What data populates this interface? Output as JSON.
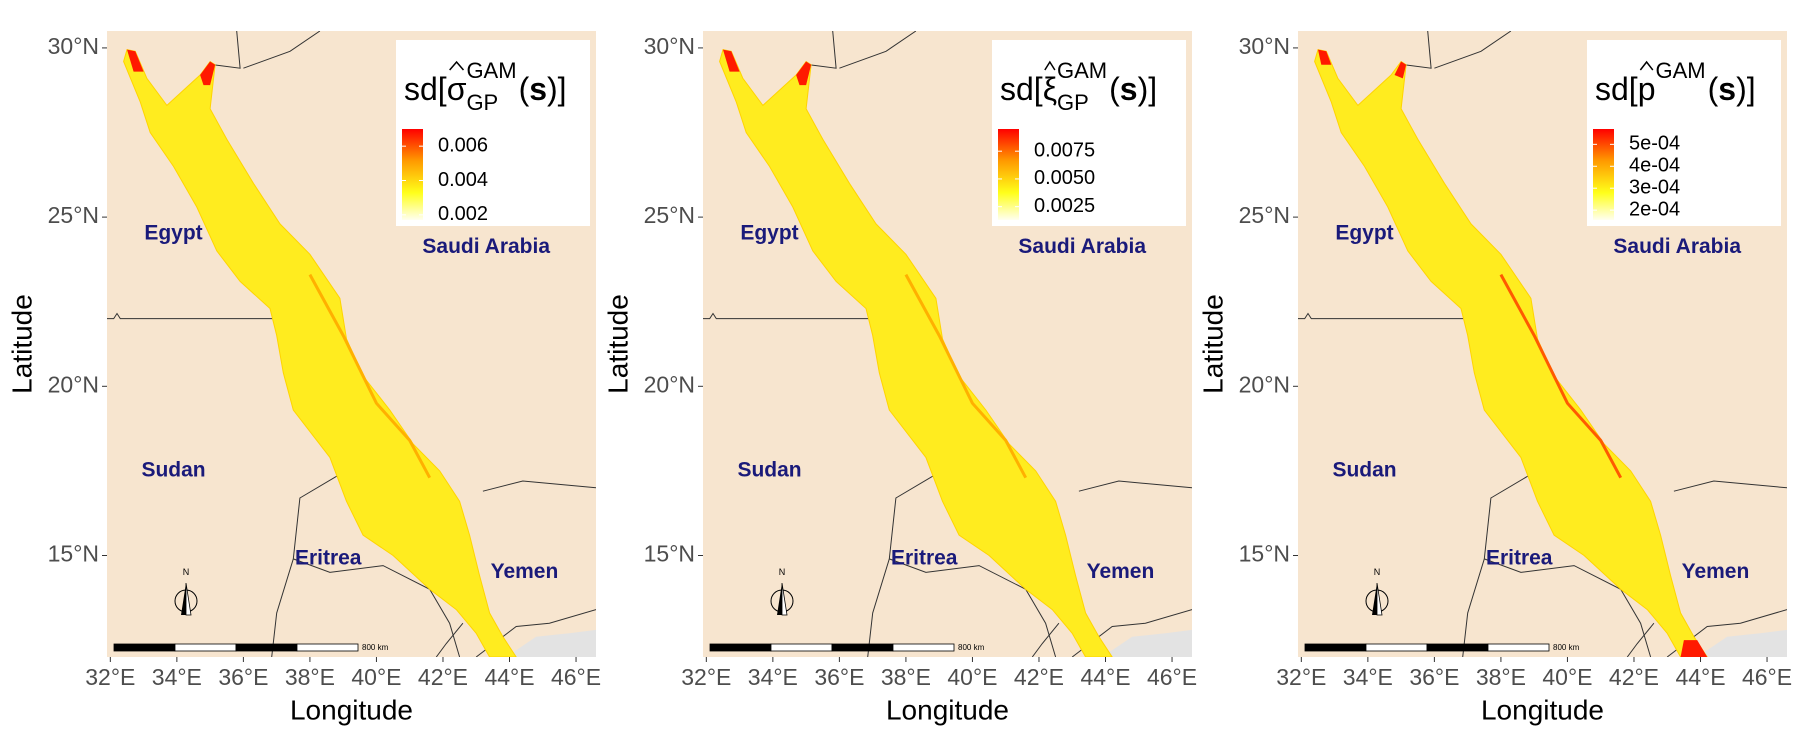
{
  "panels": [
    {
      "legend_title": {
        "prefix": "sd[",
        "symbol": "σ",
        "subscript": "GP",
        "superscript": "GAM",
        "open": "(",
        "argument": "s",
        "close": ")]"
      },
      "colorbar_lim": [
        0.0017,
        0.007
      ],
      "legend_ticks": [
        0.002,
        0.004,
        0.006
      ],
      "xlim": [
        31.9,
        46.6
      ],
      "ylim": [
        12.0,
        30.5
      ],
      "xticks": [
        {
          "value": 32,
          "label": "32°E"
        },
        {
          "value": 34,
          "label": "34°E"
        },
        {
          "value": 36,
          "label": "36°E"
        },
        {
          "value": 38,
          "label": "38°E"
        },
        {
          "value": 40,
          "label": "40°E"
        },
        {
          "value": 42,
          "label": "42°E"
        },
        {
          "value": 44,
          "label": "44°E"
        },
        {
          "value": 46,
          "label": "46°E"
        }
      ],
      "yticks": [
        {
          "value": 15,
          "label": "15°N"
        },
        {
          "value": 20,
          "label": "20°N"
        },
        {
          "value": 25,
          "label": "25°N"
        },
        {
          "value": 30,
          "label": "30°N"
        }
      ],
      "xlabel": "Longitude",
      "ylabel": "Latitude",
      "countries": [
        "Egypt",
        "Saudi Arabia",
        "Sudan",
        "Eritrea",
        "Yemen"
      ],
      "north": "N",
      "scale_label": "800 km"
    },
    {
      "legend_title": {
        "prefix": "sd[",
        "symbol": "ξ",
        "subscript": "GP",
        "superscript": "GAM",
        "open": "(",
        "argument": "s",
        "close": ")]"
      },
      "colorbar_lim": [
        0.0013,
        0.0095
      ],
      "legend_ticks": [
        0.0025,
        {
          "value": 0.005,
          "label": "0.0050"
        },
        0.0075
      ],
      "xlim": [
        31.9,
        46.6
      ],
      "ylim": [
        12.0,
        30.5
      ],
      "xticks": [
        {
          "value": 32,
          "label": "32°E"
        },
        {
          "value": 34,
          "label": "34°E"
        },
        {
          "value": 36,
          "label": "36°E"
        },
        {
          "value": 38,
          "label": "38°E"
        },
        {
          "value": 40,
          "label": "40°E"
        },
        {
          "value": 42,
          "label": "42°E"
        },
        {
          "value": 44,
          "label": "44°E"
        },
        {
          "value": 46,
          "label": "46°E"
        }
      ],
      "yticks": [
        {
          "value": 15,
          "label": "15°N"
        },
        {
          "value": 20,
          "label": "20°N"
        },
        {
          "value": 25,
          "label": "25°N"
        },
        {
          "value": 30,
          "label": "30°N"
        }
      ],
      "xlabel": "Longitude",
      "ylabel": "Latitude",
      "countries": [
        "Egypt",
        "Saudi Arabia",
        "Sudan",
        "Eritrea",
        "Yemen"
      ],
      "north": "N",
      "scale_label": "800 km"
    },
    {
      "legend_title": {
        "prefix": "sd[",
        "symbol": "p",
        "superscript": "GAM",
        "open": "(",
        "argument": "s",
        "close": ")]"
      },
      "colorbar_lim": [
        0.000155,
        0.00057
      ],
      "legend_ticks": [
        {
          "value": 0.0002,
          "label": "2e-04"
        },
        {
          "value": 0.0003,
          "label": "3e-04"
        },
        {
          "value": 0.0004,
          "label": "4e-04"
        },
        {
          "value": 0.0005,
          "label": "5e-04"
        }
      ],
      "xlim": [
        31.9,
        46.6
      ],
      "ylim": [
        12.0,
        30.5
      ],
      "xticks": [
        {
          "value": 32,
          "label": "32°E"
        },
        {
          "value": 34,
          "label": "34°E"
        },
        {
          "value": 36,
          "label": "36°E"
        },
        {
          "value": 38,
          "label": "38°E"
        },
        {
          "value": 40,
          "label": "40°E"
        },
        {
          "value": 42,
          "label": "42°E"
        },
        {
          "value": 44,
          "label": "44°E"
        },
        {
          "value": 46,
          "label": "46°E"
        }
      ],
      "yticks": [
        {
          "value": 15,
          "label": "15°N"
        },
        {
          "value": 20,
          "label": "20°N"
        },
        {
          "value": 25,
          "label": "25°N"
        },
        {
          "value": 30,
          "label": "30°N"
        }
      ],
      "xlabel": "Longitude",
      "ylabel": "Latitude",
      "countries": [
        "Egypt",
        "Saudi Arabia",
        "Sudan",
        "Eritrea",
        "Yemen"
      ],
      "north": "N",
      "scale_label": "800 km"
    }
  ]
}
